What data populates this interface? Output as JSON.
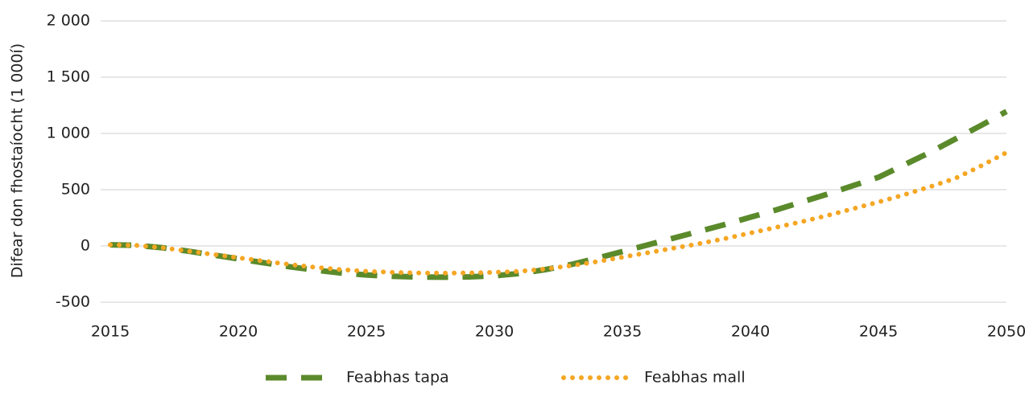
{
  "chart_data": {
    "type": "line",
    "y_label": "Difear don fhostaíocht (1 000í)",
    "x": [
      2015,
      2016,
      2017,
      2018,
      2019,
      2020,
      2021,
      2022,
      2023,
      2024,
      2025,
      2026,
      2027,
      2028,
      2029,
      2030,
      2031,
      2032,
      2033,
      2034,
      2035,
      2036,
      2037,
      2038,
      2039,
      2040,
      2041,
      2042,
      2043,
      2044,
      2045,
      2046,
      2047,
      2048,
      2049,
      2050
    ],
    "series": [
      {
        "name": "Feabhas tapa",
        "color": "#5b8a2b",
        "style": "dashed",
        "values": [
          10,
          5,
          -15,
          -45,
          -80,
          -115,
          -150,
          -185,
          -215,
          -240,
          -258,
          -270,
          -276,
          -278,
          -275,
          -265,
          -245,
          -210,
          -165,
          -110,
          -50,
          10,
          70,
          130,
          190,
          255,
          320,
          390,
          460,
          535,
          610,
          720,
          830,
          950,
          1070,
          1195
        ]
      },
      {
        "name": "Feabhas mall",
        "color": "#f5a623",
        "style": "dotted",
        "values": [
          10,
          5,
          -15,
          -45,
          -75,
          -105,
          -135,
          -165,
          -190,
          -210,
          -225,
          -235,
          -240,
          -242,
          -240,
          -235,
          -225,
          -205,
          -175,
          -140,
          -100,
          -60,
          -20,
          20,
          65,
          115,
          165,
          215,
          270,
          330,
          390,
          455,
          525,
          600,
          710,
          830
        ]
      }
    ],
    "xlim": [
      2015,
      2050
    ],
    "xticks": [
      2015,
      2020,
      2025,
      2030,
      2035,
      2040,
      2045,
      2050
    ],
    "ylim": [
      -500,
      2000
    ],
    "yticks": [
      -500,
      0,
      500,
      {
        "value": 1000,
        "label": "1 000"
      },
      {
        "value": 1500,
        "label": "1 500"
      },
      {
        "value": 2000,
        "label": "2 000"
      }
    ],
    "grid": true,
    "legend": "bottom"
  }
}
